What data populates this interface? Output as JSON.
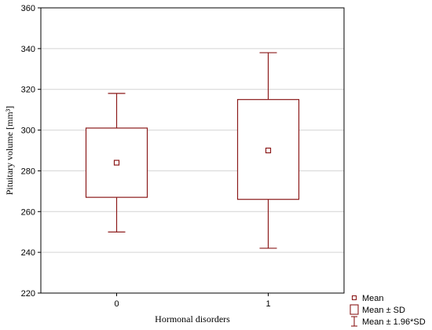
{
  "chart_data": {
    "type": "box",
    "xlabel": "Hormonal disorders",
    "ylabel": "Pituitary volume [mm³]",
    "categories": [
      "0",
      "1"
    ],
    "ylim": [
      220,
      360
    ],
    "yticks": [
      220,
      240,
      260,
      280,
      300,
      320,
      340,
      360
    ],
    "grid": true,
    "legend_placement": "bottom-right",
    "color": "#8B1A1A",
    "groups": [
      {
        "category": "0",
        "mean": 284,
        "sd_low": 267,
        "sd_high": 301,
        "ci_low": 250,
        "ci_high": 318
      },
      {
        "category": "1",
        "mean": 290,
        "sd_low": 266,
        "sd_high": 315,
        "ci_low": 242,
        "ci_high": 338
      }
    ],
    "legend": [
      {
        "symbol": "mean-point",
        "label": "Mean"
      },
      {
        "symbol": "sd-box",
        "label": "Mean ± SD"
      },
      {
        "symbol": "whisker",
        "label": "Mean ± 1.96*SD"
      }
    ]
  }
}
